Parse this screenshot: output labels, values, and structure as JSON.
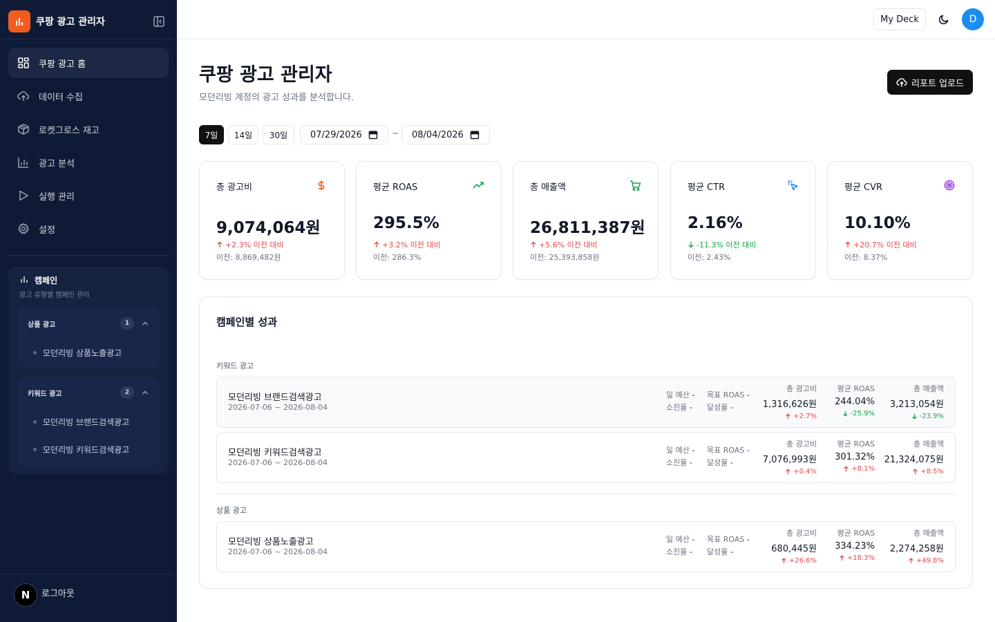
{
  "app": {
    "title": "쿠팡 광고 관리자"
  },
  "sidebar": {
    "nav": [
      {
        "label": "쿠팡 광고 홈",
        "icon": "grid-icon",
        "active": true
      },
      {
        "label": "데이터 수집",
        "icon": "cloud-upload-icon"
      },
      {
        "label": "로켓그로스 재고",
        "icon": "package-icon"
      },
      {
        "label": "광고 분석",
        "icon": "bar-chart-icon"
      },
      {
        "label": "실행 관리",
        "icon": "play-icon"
      },
      {
        "label": "설정",
        "icon": "gear-icon"
      }
    ],
    "campaigns": {
      "title": "캠페인",
      "subtitle": "광고 유형별 캠페인 관리",
      "groups": [
        {
          "label": "상품 광고",
          "count": "1",
          "items": [
            "모던리빙 상품노출광고"
          ]
        },
        {
          "label": "키워드 광고",
          "count": "2",
          "items": [
            "모던리빙 브랜드검색광고",
            "모던리빙 키워드검색광고"
          ]
        }
      ]
    },
    "logout": {
      "label": "로그아웃",
      "avatar": "N"
    }
  },
  "header": {
    "deck_label": "My Deck",
    "avatar_initial": "D"
  },
  "page": {
    "title": "쿠팡 광고 관리자",
    "subtitle": "모던리빙 계정의 광고 성과를 분석합니다.",
    "upload_label": "리포트 업로드"
  },
  "filters": {
    "ranges": [
      "7일",
      "14일",
      "30일"
    ],
    "active_range": "7일",
    "start_date": "07/29/2026",
    "end_date": "08/04/2026",
    "separator": "~"
  },
  "kpis": [
    {
      "label": "총 광고비",
      "icon": "dollar-icon",
      "color": "#f25c1f",
      "value": "9,074,064원",
      "change": "+2.3% 이전 대비",
      "direction": "up",
      "prev": "이전: 8,869,482원"
    },
    {
      "label": "평균 ROAS",
      "icon": "trending-up-icon",
      "color": "#16a34a",
      "value": "295.5%",
      "change": "+3.2% 이전 대비",
      "direction": "up",
      "prev": "이전: 286.3%"
    },
    {
      "label": "총 매출액",
      "icon": "cart-icon",
      "color": "#16a34a",
      "value": "26,811,387원",
      "change": "+5.6% 이전 대비",
      "direction": "up",
      "prev": "이전: 25,393,858원"
    },
    {
      "label": "평균 CTR",
      "icon": "cursor-click-icon",
      "color": "#1d8cf0",
      "value": "2.16%",
      "change": "-11.3% 이전 대비",
      "direction": "down",
      "prev": "이전: 2.43%"
    },
    {
      "label": "평균 CVR",
      "icon": "target-icon",
      "color": "#9333ea",
      "value": "10.10%",
      "change": "+20.7% 이전 대비",
      "direction": "up",
      "prev": "이전: 8.37%"
    }
  ],
  "performance": {
    "title": "캠페인별 성과",
    "labels": {
      "daily_budget": "일 예산",
      "spend_rate": "소진율",
      "target_roas": "목표 ROAS",
      "achievement": "달성율",
      "dash": "-",
      "spend": "총 광고비",
      "roas": "평균 ROAS",
      "sales": "총 매출액"
    },
    "groups": [
      {
        "label": "키워드 광고",
        "campaigns": [
          {
            "name": "모던리빙 브랜드검색광고",
            "dates": "2026-07-06 ~ 2026-08-04",
            "spend": "1,316,626원",
            "spend_chg": "+2.7%",
            "spend_dir": "up",
            "roas": "244.04%",
            "roas_chg": "-25.9%",
            "roas_dir": "down",
            "sales": "3,213,054원",
            "sales_chg": "-23.9%",
            "sales_dir": "down"
          },
          {
            "name": "모던리빙 키워드검색광고",
            "dates": "2026-07-06 ~ 2026-08-04",
            "spend": "7,076,993원",
            "spend_chg": "+0.4%",
            "spend_dir": "up",
            "roas": "301.32%",
            "roas_chg": "+8.1%",
            "roas_dir": "up",
            "sales": "21,324,075원",
            "sales_chg": "+8.5%",
            "sales_dir": "up"
          }
        ]
      },
      {
        "label": "상품 광고",
        "campaigns": [
          {
            "name": "모던리빙 상품노출광고",
            "dates": "2026-07-06 ~ 2026-08-04",
            "spend": "680,445원",
            "spend_chg": "+26.6%",
            "spend_dir": "up",
            "roas": "334.23%",
            "roas_chg": "+18.3%",
            "roas_dir": "up",
            "sales": "2,274,258원",
            "sales_chg": "+49.8%",
            "sales_dir": "up"
          }
        ]
      }
    ]
  },
  "colors": {
    "sidebar_bg": "#0f1b36",
    "brand": "#f25c1f",
    "up": "#e5484d",
    "down": "#16a34a",
    "avatar": "#1d8cf0"
  }
}
